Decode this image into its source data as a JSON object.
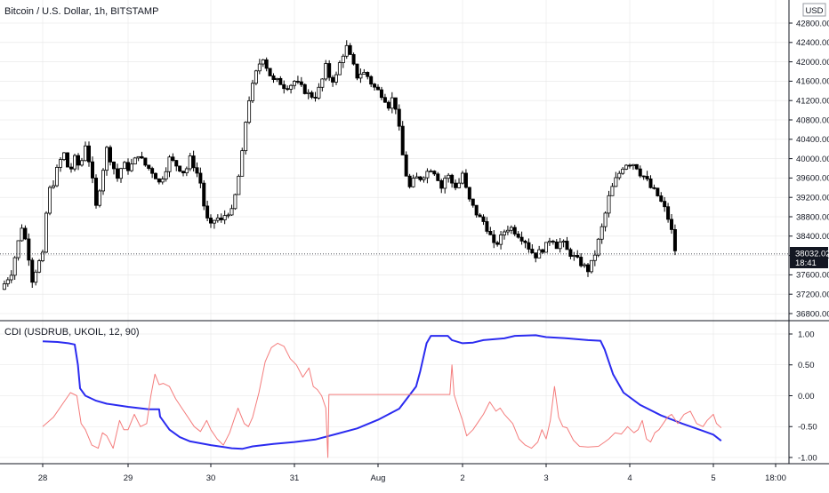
{
  "chart_data": [
    {
      "type": "candlestick",
      "title": "Bitcoin / U.S. Dollar, 1h, BITSTAMP",
      "currency": "USD",
      "ylim": [
        36800,
        43200
      ],
      "y_ticks": [
        "42800.00",
        "42400.00",
        "42000.00",
        "41600.00",
        "41200.00",
        "40800.00",
        "40400.00",
        "40000.00",
        "39600.00",
        "39200.00",
        "38800.00",
        "38400.00",
        "38000.00",
        "37600.00",
        "37200.00",
        "36800.00"
      ],
      "last_price": "38032.02",
      "countdown": "18:41",
      "close_path": [
        [
          0,
          37300
        ],
        [
          0.5,
          37650
        ],
        [
          1,
          38600
        ],
        [
          1.25,
          38200
        ],
        [
          1.5,
          37500
        ],
        [
          1.75,
          37800
        ],
        [
          2,
          38000
        ],
        [
          2.25,
          39300
        ],
        [
          2.5,
          39500
        ],
        [
          2.75,
          39900
        ],
        [
          3,
          40100
        ],
        [
          3.25,
          39700
        ],
        [
          3.5,
          40000
        ],
        [
          3.75,
          39800
        ],
        [
          4,
          40300
        ],
        [
          4.25,
          39800
        ],
        [
          4.5,
          39000
        ],
        [
          4.75,
          39600
        ],
        [
          5,
          40200
        ],
        [
          5.25,
          39900
        ],
        [
          5.5,
          39600
        ],
        [
          5.75,
          39900
        ],
        [
          6,
          39800
        ],
        [
          6.25,
          39900
        ],
        [
          6.5,
          40100
        ],
        [
          6.75,
          39900
        ],
        [
          7,
          39800
        ],
        [
          7.25,
          39700
        ],
        [
          7.5,
          39500
        ],
        [
          7.75,
          39700
        ],
        [
          8,
          40000
        ],
        [
          8.25,
          39900
        ],
        [
          8.5,
          39800
        ],
        [
          8.75,
          39700
        ],
        [
          9,
          40000
        ],
        [
          9.25,
          39800
        ],
        [
          9.5,
          39500
        ],
        [
          9.75,
          38800
        ],
        [
          10,
          38600
        ],
        [
          10.25,
          38800
        ],
        [
          10.5,
          38700
        ],
        [
          10.75,
          38900
        ],
        [
          11,
          38900
        ],
        [
          11.25,
          39400
        ],
        [
          11.5,
          40100
        ],
        [
          11.75,
          41100
        ],
        [
          12,
          41500
        ],
        [
          12.25,
          41900
        ],
        [
          12.5,
          42100
        ],
        [
          12.75,
          41800
        ],
        [
          13,
          41600
        ],
        [
          13.25,
          41600
        ],
        [
          13.5,
          41500
        ],
        [
          13.75,
          41500
        ],
        [
          14,
          41600
        ],
        [
          14.25,
          41500
        ],
        [
          14.5,
          41400
        ],
        [
          14.75,
          41300
        ],
        [
          15,
          41300
        ],
        [
          15.25,
          41500
        ],
        [
          15.5,
          41900
        ],
        [
          15.75,
          41600
        ],
        [
          16,
          41700
        ],
        [
          16.25,
          42100
        ],
        [
          16.5,
          42300
        ],
        [
          16.75,
          42000
        ],
        [
          17,
          41700
        ],
        [
          17.25,
          41800
        ],
        [
          17.5,
          41700
        ],
        [
          17.75,
          41500
        ],
        [
          18,
          41400
        ],
        [
          18.25,
          41300
        ],
        [
          18.5,
          41100
        ],
        [
          18.75,
          41300
        ],
        [
          19,
          40600
        ],
        [
          19.25,
          39800
        ],
        [
          19.5,
          39400
        ],
        [
          19.75,
          39600
        ],
        [
          20,
          39600
        ],
        [
          20.25,
          39700
        ],
        [
          20.5,
          39800
        ],
        [
          20.75,
          39700
        ],
        [
          21,
          39400
        ],
        [
          21.25,
          39700
        ],
        [
          21.5,
          39500
        ],
        [
          21.75,
          39400
        ],
        [
          22,
          39700
        ],
        [
          22.25,
          39200
        ],
        [
          22.5,
          39000
        ],
        [
          22.75,
          38800
        ],
        [
          23,
          38700
        ],
        [
          23.25,
          38500
        ],
        [
          23.5,
          38200
        ],
        [
          23.75,
          38300
        ],
        [
          24,
          38500
        ],
        [
          24.25,
          38600
        ],
        [
          24.5,
          38500
        ],
        [
          24.75,
          38400
        ],
        [
          25,
          38300
        ],
        [
          25.25,
          38100
        ],
        [
          25.5,
          38000
        ],
        [
          25.75,
          38100
        ],
        [
          26,
          38200
        ],
        [
          26.25,
          38400
        ],
        [
          26.5,
          38200
        ],
        [
          26.75,
          38300
        ],
        [
          27,
          38100
        ],
        [
          27.25,
          38000
        ],
        [
          27.5,
          37900
        ],
        [
          27.75,
          37800
        ],
        [
          28,
          37700
        ],
        [
          28.25,
          37900
        ],
        [
          28.5,
          38300
        ],
        [
          28.75,
          38700
        ],
        [
          29,
          39200
        ],
        [
          29.25,
          39500
        ],
        [
          29.5,
          39700
        ],
        [
          29.75,
          39900
        ],
        [
          30,
          39900
        ],
        [
          30.25,
          39900
        ],
        [
          30.5,
          39700
        ],
        [
          30.75,
          39600
        ],
        [
          31,
          39400
        ],
        [
          31.25,
          39300
        ],
        [
          31.5,
          39100
        ],
        [
          31.75,
          38900
        ],
        [
          32,
          38500
        ],
        [
          32.2,
          38032
        ]
      ]
    },
    {
      "type": "line",
      "title": "CDI (USDRUB, UKOIL, 12, 90)",
      "ylim": [
        -1.1,
        1.1
      ],
      "y_ticks": [
        "1.00",
        "0.50",
        "0.00",
        "-0.50",
        "-1.00"
      ],
      "x_ticks": [
        "28",
        "29",
        "30",
        "31",
        "Aug",
        "2",
        "3",
        "4",
        "5",
        "18:00"
      ],
      "series": [
        {
          "color": "#2B2BF0",
          "points": [
            [
              0,
              0.88
            ],
            [
              0.7,
              0.87
            ],
            [
              1.2,
              0.85
            ],
            [
              1.5,
              0.83
            ],
            [
              1.65,
              0.5
            ],
            [
              1.75,
              0.12
            ],
            [
              2,
              0.0
            ],
            [
              2.5,
              -0.08
            ],
            [
              3,
              -0.13
            ],
            [
              4,
              -0.18
            ],
            [
              5,
              -0.22
            ],
            [
              5.3,
              -0.22
            ],
            [
              5.5,
              -0.22
            ],
            [
              5.55,
              -0.34
            ],
            [
              6,
              -0.55
            ],
            [
              6.5,
              -0.67
            ],
            [
              7,
              -0.74
            ],
            [
              8,
              -0.8
            ],
            [
              9,
              -0.85
            ],
            [
              9.5,
              -0.86
            ],
            [
              10,
              -0.82
            ],
            [
              11,
              -0.78
            ],
            [
              12,
              -0.75
            ],
            [
              13,
              -0.71
            ],
            [
              14,
              -0.62
            ],
            [
              15,
              -0.53
            ],
            [
              16,
              -0.39
            ],
            [
              17,
              -0.21
            ],
            [
              17.8,
              0.15
            ],
            [
              18,
              0.4
            ],
            [
              18.3,
              0.85
            ],
            [
              18.5,
              0.97
            ],
            [
              19,
              0.97
            ],
            [
              19.3,
              0.97
            ],
            [
              19.5,
              0.9
            ],
            [
              20,
              0.85
            ],
            [
              20.5,
              0.86
            ],
            [
              21,
              0.9
            ],
            [
              22,
              0.93
            ],
            [
              22.5,
              0.97
            ],
            [
              23.5,
              0.98
            ],
            [
              24,
              0.95
            ],
            [
              25,
              0.93
            ],
            [
              26,
              0.9
            ],
            [
              26.6,
              0.89
            ],
            [
              26.8,
              0.75
            ],
            [
              27.2,
              0.35
            ],
            [
              27.7,
              0.05
            ],
            [
              28.5,
              -0.15
            ],
            [
              29.5,
              -0.32
            ],
            [
              30.5,
              -0.45
            ],
            [
              31.5,
              -0.57
            ],
            [
              32,
              -0.63
            ],
            [
              32.5,
              -0.73
            ]
          ]
        },
        {
          "color": "#F47C7C",
          "points": [
            [
              0,
              -0.5
            ],
            [
              0.5,
              -0.35
            ],
            [
              1,
              -0.1
            ],
            [
              1.3,
              0.05
            ],
            [
              1.6,
              0.0
            ],
            [
              1.8,
              -0.45
            ],
            [
              2,
              -0.55
            ],
            [
              2.3,
              -0.8
            ],
            [
              2.6,
              -0.85
            ],
            [
              2.8,
              -0.6
            ],
            [
              3,
              -0.65
            ],
            [
              3.3,
              -0.85
            ],
            [
              3.6,
              -0.4
            ],
            [
              3.8,
              -0.55
            ],
            [
              4,
              -0.55
            ],
            [
              4.3,
              -0.3
            ],
            [
              4.6,
              -0.5
            ],
            [
              4.9,
              -0.45
            ],
            [
              5.1,
              -0.0
            ],
            [
              5.3,
              0.35
            ],
            [
              5.5,
              0.18
            ],
            [
              5.7,
              0.2
            ],
            [
              6,
              0.15
            ],
            [
              6.3,
              -0.05
            ],
            [
              6.6,
              -0.2
            ],
            [
              6.9,
              -0.35
            ],
            [
              7.2,
              -0.5
            ],
            [
              7.5,
              -0.58
            ],
            [
              7.8,
              -0.4
            ],
            [
              8,
              -0.55
            ],
            [
              8.3,
              -0.7
            ],
            [
              8.6,
              -0.8
            ],
            [
              8.9,
              -0.6
            ],
            [
              9.1,
              -0.4
            ],
            [
              9.3,
              -0.2
            ],
            [
              9.6,
              -0.45
            ],
            [
              9.8,
              -0.5
            ],
            [
              10,
              -0.35
            ],
            [
              10.3,
              0.05
            ],
            [
              10.6,
              0.55
            ],
            [
              10.9,
              0.78
            ],
            [
              11.2,
              0.85
            ],
            [
              11.5,
              0.8
            ],
            [
              11.8,
              0.6
            ],
            [
              12.1,
              0.5
            ],
            [
              12.4,
              0.3
            ],
            [
              12.7,
              0.45
            ],
            [
              12.9,
              0.15
            ],
            [
              13.1,
              0.1
            ],
            [
              13.3,
              0.0
            ],
            [
              13.5,
              -0.2
            ],
            [
              13.6,
              -1.0
            ],
            [
              13.65,
              0.02
            ],
            [
              14,
              0.02
            ],
            [
              16,
              0.02
            ],
            [
              18,
              0.02
            ],
            [
              19.4,
              0.02
            ],
            [
              19.5,
              0.5
            ],
            [
              19.6,
              0.02
            ],
            [
              19.8,
              -0.2
            ],
            [
              20,
              -0.4
            ],
            [
              20.2,
              -0.65
            ],
            [
              20.5,
              -0.55
            ],
            [
              20.8,
              -0.4
            ],
            [
              21,
              -0.3
            ],
            [
              21.3,
              -0.1
            ],
            [
              21.6,
              -0.25
            ],
            [
              21.8,
              -0.2
            ],
            [
              22,
              -0.3
            ],
            [
              22.4,
              -0.45
            ],
            [
              22.7,
              -0.7
            ],
            [
              23,
              -0.8
            ],
            [
              23.3,
              -0.85
            ],
            [
              23.6,
              -0.75
            ],
            [
              23.8,
              -0.55
            ],
            [
              24,
              -0.7
            ],
            [
              24.2,
              -0.4
            ],
            [
              24.4,
              0.15
            ],
            [
              24.6,
              -0.35
            ],
            [
              24.8,
              -0.5
            ],
            [
              25,
              -0.52
            ],
            [
              25.3,
              -0.72
            ],
            [
              25.6,
              -0.82
            ],
            [
              26,
              -0.83
            ],
            [
              26.5,
              -0.82
            ],
            [
              26.8,
              -0.75
            ],
            [
              27,
              -0.7
            ],
            [
              27.3,
              -0.6
            ],
            [
              27.6,
              -0.62
            ],
            [
              27.9,
              -0.5
            ],
            [
              28.2,
              -0.6
            ],
            [
              28.4,
              -0.55
            ],
            [
              28.6,
              -0.4
            ],
            [
              28.8,
              -0.7
            ],
            [
              29,
              -0.75
            ],
            [
              29.2,
              -0.6
            ],
            [
              29.4,
              -0.55
            ],
            [
              29.6,
              -0.45
            ],
            [
              29.8,
              -0.35
            ],
            [
              30,
              -0.3
            ],
            [
              30.3,
              -0.45
            ],
            [
              30.6,
              -0.3
            ],
            [
              30.9,
              -0.25
            ],
            [
              31.2,
              -0.45
            ],
            [
              31.5,
              -0.5
            ],
            [
              31.7,
              -0.4
            ],
            [
              32,
              -0.3
            ],
            [
              32.2,
              -0.45
            ],
            [
              32.5,
              -0.52
            ]
          ]
        }
      ]
    }
  ],
  "colors": {
    "up": "#FFFFFF",
    "down": "#000000",
    "wick": "#000000",
    "cdi_blue": "#2B2BF0",
    "cdi_red": "#F47C7C",
    "price_line": "#131722",
    "grid": "#E6E6E6"
  }
}
